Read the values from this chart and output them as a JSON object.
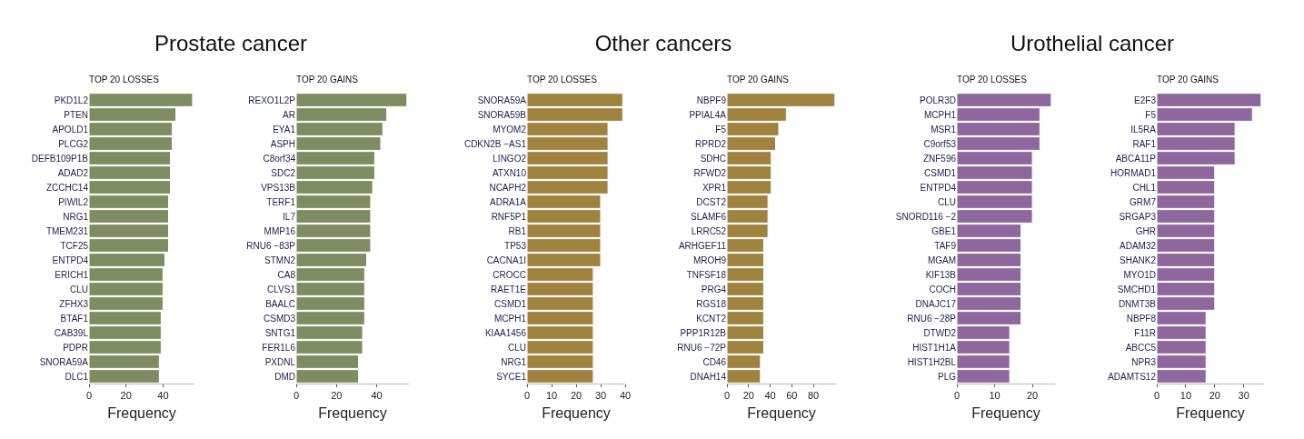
{
  "chart_data": [
    {
      "type": "bar",
      "orientation": "horizontal",
      "title": "Prostate cancer",
      "subtitle": "TOP 20 LOSSES",
      "xlabel": "Frequency",
      "color": "#7f8c62",
      "xlim": [
        0,
        57
      ],
      "xticks": [
        0,
        20,
        40
      ],
      "categories": [
        "PKD1L2",
        "PTEN",
        "APOLD1",
        "PLCG2",
        "DEFB109P1B",
        "ADAD2",
        "ZCCHC14",
        "PIWIL2",
        "NRG1",
        "TMEM231",
        "TCF25",
        "ENTPD4",
        "ERICH1",
        "CLU",
        "ZFHX3",
        "BTAF1",
        "CAB39L",
        "PDPR",
        "SNORA59A",
        "DLC1"
      ],
      "values": [
        56,
        47,
        45,
        45,
        44,
        44,
        44,
        43,
        43,
        43,
        43,
        41,
        40,
        40,
        40,
        39,
        39,
        39,
        38,
        38
      ]
    },
    {
      "type": "bar",
      "orientation": "horizontal",
      "subtitle": "TOP 20 GAINS",
      "xlabel": "Frequency",
      "color": "#7f8c62",
      "xlim": [
        0,
        56
      ],
      "xticks": [
        0,
        20,
        40
      ],
      "categories": [
        "REXO1L2P",
        "AR",
        "EYA1",
        "ASPH",
        "C8orf34",
        "SDC2",
        "VPS13B",
        "TERF1",
        "IL7",
        "MMP16",
        "RNU6 −83P",
        "STMN2",
        "CA8",
        "CLVS1",
        "BAALC",
        "CSMD3",
        "SNTG1",
        "FER1L6",
        "PXDNL",
        "DMD"
      ],
      "values": [
        55,
        45,
        43,
        42,
        39,
        39,
        38,
        37,
        37,
        37,
        37,
        35,
        34,
        34,
        34,
        34,
        33,
        33,
        31,
        31
      ]
    },
    {
      "type": "bar",
      "orientation": "horizontal",
      "title": "Other cancers",
      "subtitle": "TOP 20 LOSSES",
      "xlabel": "Frequency",
      "color": "#a0823f",
      "xlim": [
        0,
        40
      ],
      "xticks": [
        0,
        10,
        20,
        30,
        40
      ],
      "categories": [
        "SNORA59A",
        "SNORA59B",
        "MYOM2",
        "CDKN2B −AS1",
        "LINGO2",
        "ATXN10",
        "NCAPH2",
        "ADRA1A",
        "RNF5P1",
        "RB1",
        "TP53",
        "CACNA1I",
        "CROCC",
        "RAET1E",
        "CSMD1",
        "MCPH1",
        "KIAA1456",
        "CLU",
        "NRG1",
        "SYCE1"
      ],
      "values": [
        39,
        39,
        33,
        33,
        33,
        33,
        33,
        30,
        30,
        30,
        30,
        30,
        27,
        27,
        27,
        27,
        27,
        27,
        27,
        27
      ]
    },
    {
      "type": "bar",
      "orientation": "horizontal",
      "subtitle": "TOP 20 GAINS",
      "xlabel": "Frequency",
      "color": "#a0823f",
      "xlim": [
        0,
        101
      ],
      "xticks": [
        0,
        20,
        40,
        60,
        80
      ],
      "categories": [
        "NBPF9",
        "PPIAL4A",
        "F5",
        "RPRD2",
        "SDHC",
        "RFWD2",
        "XPR1",
        "DCST2",
        "SLAMF6",
        "LRRC52",
        "ARHGEF11",
        "MROH9",
        "TNFSF18",
        "PRG4",
        "RGS18",
        "KCNT2",
        "PPP1R12B",
        "RNU6 −72P",
        "CD46",
        "DNAH14"
      ],
      "values": [
        100,
        55,
        48,
        45,
        41,
        41,
        41,
        38,
        38,
        38,
        34,
        34,
        34,
        34,
        34,
        34,
        34,
        34,
        31,
        31
      ]
    },
    {
      "type": "bar",
      "orientation": "horizontal",
      "title": "Urothelial cancer",
      "subtitle": "TOP 20 LOSSES",
      "xlabel": "Frequency",
      "color": "#8d679d",
      "xlim": [
        0,
        26
      ],
      "xticks": [
        0,
        10,
        20
      ],
      "categories": [
        "POLR3D",
        "MCPH1",
        "MSR1",
        "C9orf53",
        "ZNF596",
        "CSMD1",
        "ENTPD4",
        "CLU",
        "SNORD116 −2",
        "GBE1",
        "TAF9",
        "MGAM",
        "KIF13B",
        "COCH",
        "DNAJC17",
        "RNU6 −28P",
        "DTWD2",
        "HIST1H1A",
        "HIST1H2BL",
        "PLG"
      ],
      "values": [
        25,
        22,
        22,
        22,
        20,
        20,
        20,
        20,
        20,
        17,
        17,
        17,
        17,
        17,
        17,
        17,
        14,
        14,
        14,
        14
      ]
    },
    {
      "type": "bar",
      "orientation": "horizontal",
      "subtitle": "TOP 20 GAINS",
      "xlabel": "Frequency",
      "color": "#8d679d",
      "xlim": [
        0,
        37
      ],
      "xticks": [
        0,
        10,
        20,
        30
      ],
      "categories": [
        "E2F3",
        "F5",
        "IL5RA",
        "RAF1",
        "ABCA11P",
        "HORMAD1",
        "CHL1",
        "GRM7",
        "SRGAP3",
        "GHR",
        "ADAM32",
        "SHANK2",
        "MYO1D",
        "SMCHD1",
        "DNMT3B",
        "NBPF8",
        "F11R",
        "ABCC5",
        "NPR3",
        "ADAMTS12"
      ],
      "values": [
        36,
        33,
        27,
        27,
        27,
        20,
        20,
        20,
        20,
        20,
        20,
        20,
        20,
        20,
        20,
        17,
        17,
        17,
        17,
        17
      ]
    }
  ]
}
